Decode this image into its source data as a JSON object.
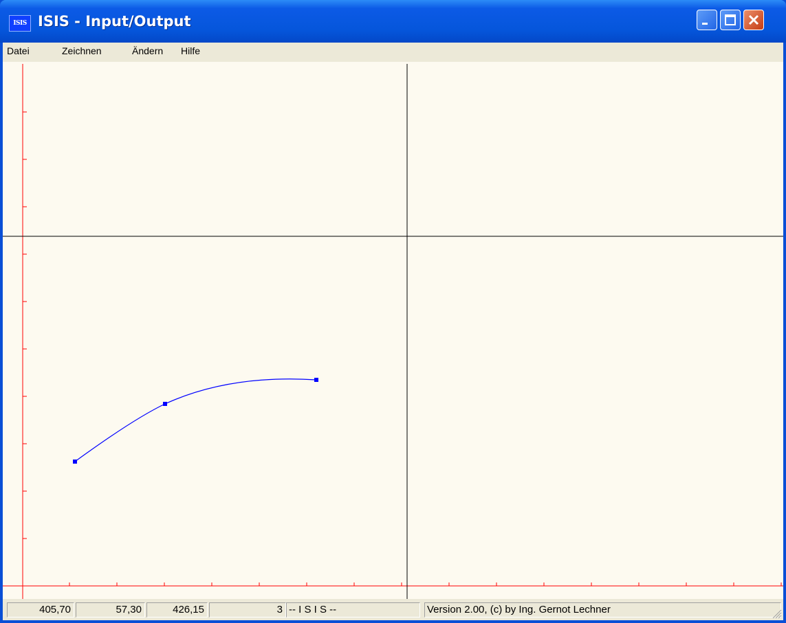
{
  "window": {
    "title": "ISIS - Input/Output",
    "app_icon_text": "ISIS"
  },
  "menu": [
    "Datei",
    "Zeichnen",
    "Ändern",
    "Hilfe"
  ],
  "status": {
    "fields": [
      "405,70",
      "57,30",
      "426,15",
      "3",
      "-- I S I S  --",
      "Version 2.00, (c) by Ing. Gernot Lechner"
    ]
  },
  "colors": {
    "axis": "#ff0000",
    "crosshair": "#000000",
    "curve": "#0000ff",
    "canvas_bg": "#fdfaf0"
  },
  "curve": {
    "points": [
      [
        105,
        582
      ],
      [
        236,
        498
      ],
      [
        456,
        463
      ]
    ]
  }
}
